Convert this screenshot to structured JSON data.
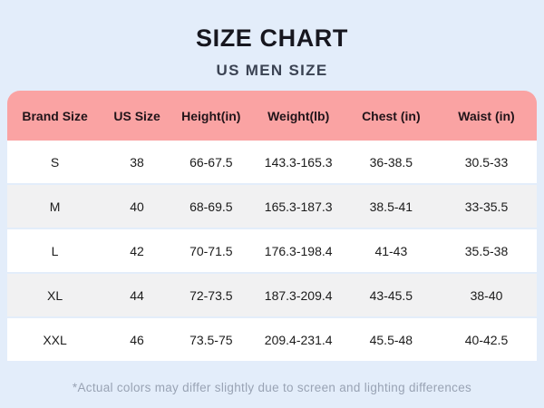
{
  "header": {
    "title": "SIZE CHART",
    "subtitle": "US MEN SIZE"
  },
  "table": {
    "columns": [
      "Brand Size",
      "US Size",
      "Height(in)",
      "Weight(lb)",
      "Chest (in)",
      "Waist (in)"
    ],
    "rows": [
      [
        "S",
        "38",
        "66-67.5",
        "143.3-165.3",
        "36-38.5",
        "30.5-33"
      ],
      [
        "M",
        "40",
        "68-69.5",
        "165.3-187.3",
        "38.5-41",
        "33-35.5"
      ],
      [
        "L",
        "42",
        "70-71.5",
        "176.3-198.4",
        "41-43",
        "35.5-38"
      ],
      [
        "XL",
        "44",
        "72-73.5",
        "187.3-209.4",
        "43-45.5",
        "38-40"
      ],
      [
        "XXL",
        "46",
        "73.5-75",
        "209.4-231.4",
        "45.5-48",
        "40-42.5"
      ]
    ]
  },
  "footer": {
    "note": "*Actual colors may differ slightly due to screen and lighting differences"
  },
  "colors": {
    "background": "#e3edfa",
    "header_pink": "#faa3a3",
    "row_alt_gray": "#f1f1f2",
    "title_text": "#17171f",
    "subtitle_text": "#3b4353",
    "footer_text": "#99a3b4"
  }
}
